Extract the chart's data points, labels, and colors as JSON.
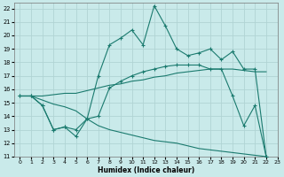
{
  "xlabel": "Humidex (Indice chaleur)",
  "xlim": [
    -0.5,
    23
  ],
  "ylim": [
    11,
    22.4
  ],
  "yticks": [
    11,
    12,
    13,
    14,
    15,
    16,
    17,
    18,
    19,
    20,
    21,
    22
  ],
  "xticks": [
    0,
    1,
    2,
    3,
    4,
    5,
    6,
    7,
    8,
    9,
    10,
    11,
    12,
    13,
    14,
    15,
    16,
    17,
    18,
    19,
    20,
    21,
    22,
    23
  ],
  "bg_color": "#c9eaea",
  "grid_color": "#b0d4d4",
  "line_color": "#1a7a6e",
  "lines": [
    {
      "x": [
        0,
        1,
        2,
        3,
        4,
        5,
        6,
        7,
        8,
        9,
        10,
        11,
        12,
        13,
        14,
        15,
        16,
        17,
        18,
        19,
        20,
        21,
        22
      ],
      "y": [
        15.5,
        15.5,
        14.8,
        13.0,
        13.2,
        12.5,
        13.8,
        17.0,
        19.3,
        19.8,
        20.4,
        19.3,
        22.2,
        20.7,
        19.0,
        18.5,
        18.7,
        19.0,
        18.2,
        18.8,
        17.5,
        17.5,
        11.0
      ],
      "has_markers": true
    },
    {
      "x": [
        0,
        1,
        2,
        3,
        4,
        5,
        6,
        7,
        8,
        9,
        10,
        11,
        12,
        13,
        14,
        15,
        16,
        17,
        18,
        19,
        20,
        21,
        22
      ],
      "y": [
        15.5,
        15.5,
        15.5,
        15.6,
        15.7,
        15.7,
        15.9,
        16.1,
        16.3,
        16.4,
        16.6,
        16.7,
        16.9,
        17.0,
        17.2,
        17.3,
        17.4,
        17.5,
        17.5,
        17.5,
        17.4,
        17.3,
        17.3
      ],
      "has_markers": false
    },
    {
      "x": [
        0,
        1,
        2,
        3,
        4,
        5,
        6,
        7,
        8,
        9,
        10,
        11,
        12,
        13,
        14,
        15,
        16,
        17,
        18,
        19,
        20,
        21,
        22
      ],
      "y": [
        15.5,
        15.5,
        15.2,
        14.9,
        14.7,
        14.4,
        13.8,
        13.3,
        13.0,
        12.8,
        12.6,
        12.4,
        12.2,
        12.1,
        12.0,
        11.8,
        11.6,
        11.5,
        11.4,
        11.3,
        11.2,
        11.1,
        11.0
      ],
      "has_markers": false
    },
    {
      "x": [
        0,
        1,
        2,
        3,
        4,
        5,
        6,
        7,
        8,
        9,
        10,
        11,
        12,
        13,
        14,
        15,
        16,
        17,
        18,
        19,
        20,
        21,
        22
      ],
      "y": [
        15.5,
        15.5,
        14.8,
        13.0,
        13.2,
        13.0,
        13.8,
        14.0,
        16.1,
        16.6,
        17.0,
        17.3,
        17.5,
        17.7,
        17.8,
        17.8,
        17.8,
        17.5,
        17.5,
        15.5,
        13.3,
        14.8,
        11.0
      ],
      "has_markers": true
    }
  ]
}
